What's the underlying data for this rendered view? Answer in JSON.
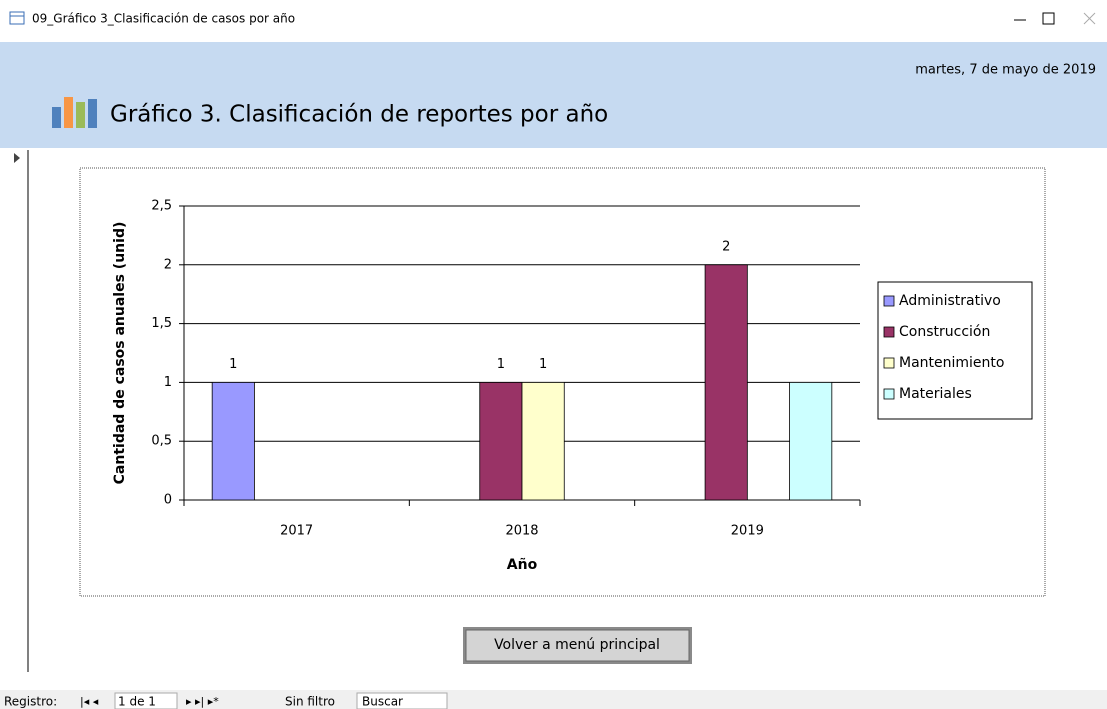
{
  "window": {
    "title": "09_Gráfico 3_Clasificación de casos por año"
  },
  "header": {
    "date": "martes, 7 de mayo de 2019",
    "title": "Gráfico 3. Clasificación de reportes por año"
  },
  "chart_data": {
    "type": "bar",
    "x_label": "Año",
    "y_label": "Cantidad de casos anuales (unid)",
    "categories": [
      "2017",
      "2018",
      "2019"
    ],
    "series": [
      {
        "name": "Administrativo",
        "color": "#9999ff",
        "values": [
          1,
          null,
          null
        ],
        "value_labels": [
          "1",
          null,
          null
        ]
      },
      {
        "name": "Construcción",
        "color": "#993366",
        "values": [
          null,
          1,
          2
        ],
        "value_labels": [
          null,
          "1",
          "2"
        ]
      },
      {
        "name": "Mantenimiento",
        "color": "#ffffcc",
        "values": [
          null,
          1,
          null
        ],
        "value_labels": [
          null,
          "1",
          null
        ]
      },
      {
        "name": "Materiales",
        "color": "#ccffff",
        "values": [
          null,
          null,
          1
        ],
        "value_labels": [
          null,
          null,
          null
        ]
      }
    ],
    "ylim": [
      0,
      2.5
    ],
    "yticks": [
      0,
      {
        "value": 0.5,
        "label": "0,5"
      },
      1,
      {
        "value": 1.5,
        "label": "1,5"
      },
      2,
      {
        "value": 2.5,
        "label": "2,5"
      }
    ],
    "grid": true,
    "legend": "right"
  },
  "button": {
    "label": "Volver a menú principal"
  },
  "status": {
    "record_label": "Registro:",
    "position": "1 de 1",
    "filter": "Sin filtro",
    "search": "Buscar"
  }
}
